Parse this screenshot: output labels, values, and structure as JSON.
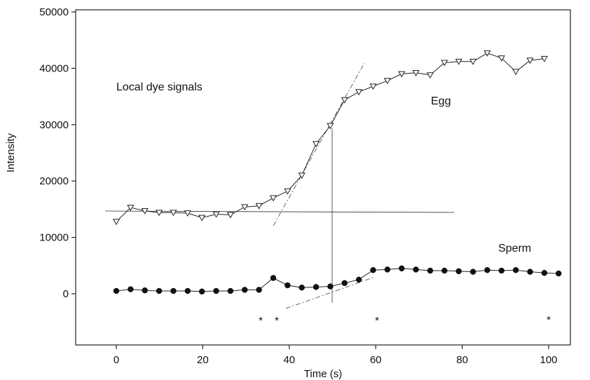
{
  "chart_data": {
    "type": "line",
    "title": "",
    "xlabel": "Time (s)",
    "ylabel": "Intensity",
    "xlim": [
      -8,
      113
    ],
    "ylim": [
      -9000,
      50000
    ],
    "xticks": [
      0,
      20,
      40,
      60,
      80,
      100
    ],
    "yticks": [
      0,
      10000,
      20000,
      30000,
      40000,
      50000
    ],
    "grid": false,
    "annotations": [
      {
        "text": "Local dye signals",
        "x": 0,
        "y": 37000
      },
      {
        "text": "Egg",
        "x": 66,
        "y": 34500
      },
      {
        "text": "Sperm",
        "x": 66,
        "y": 7800
      }
    ],
    "series": [
      {
        "name": "Egg",
        "marker": "open-triangle-down",
        "x": [
          0,
          3.3,
          6.6,
          9.9,
          13.2,
          16.5,
          19.8,
          23.1,
          26.4,
          29.7,
          33,
          36.3,
          39.6,
          42.9,
          46.2,
          49.5,
          52.8,
          56.1,
          59.4,
          62.7,
          66,
          69.3,
          72.6,
          75.9,
          79.2,
          82.5,
          85.8,
          89.1,
          92.4,
          95.7,
          99
        ],
        "values": [
          12800,
          15300,
          14700,
          14400,
          14400,
          14300,
          13500,
          14100,
          14000,
          15400,
          15600,
          17000,
          18200,
          21000,
          26600,
          29800,
          34400,
          35800,
          36800,
          37800,
          39000,
          39200,
          38800,
          41000,
          41200,
          41200,
          42700,
          41800,
          39400,
          41400,
          41700
        ]
      },
      {
        "name": "Sperm",
        "marker": "filled-circle",
        "x": [
          0,
          3.3,
          6.6,
          9.9,
          13.2,
          16.5,
          19.8,
          23.1,
          26.4,
          29.7,
          33,
          36.3,
          39.6,
          42.9,
          46.2,
          49.5,
          52.8,
          56.1,
          59.4,
          62.7,
          66,
          69.3,
          72.6,
          75.9,
          79.2,
          82.5,
          85.8,
          89.1,
          92.4,
          95.7,
          99,
          102.3
        ],
        "values": [
          500,
          800,
          600,
          500,
          500,
          500,
          400,
          500,
          500,
          700,
          700,
          2800,
          1500,
          1100,
          1200,
          1300,
          1900,
          2500,
          4200,
          4300,
          4500,
          4300,
          4100,
          4100,
          4000,
          3900,
          4200,
          4100,
          4200,
          3900,
          3700,
          3600
        ]
      }
    ]
  }
}
